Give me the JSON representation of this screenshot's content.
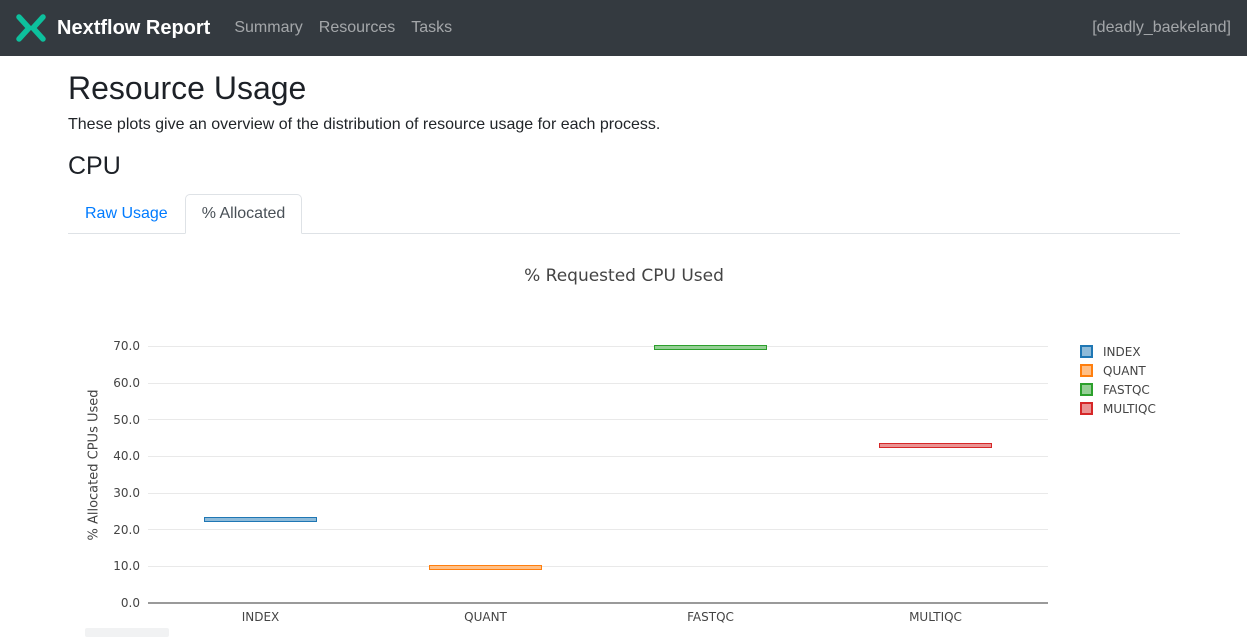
{
  "navbar": {
    "brand": "Nextflow Report",
    "items": [
      {
        "label": "Summary"
      },
      {
        "label": "Resources"
      },
      {
        "label": "Tasks"
      }
    ],
    "run_name": "[deadly_baekeland]",
    "logo_color": "#0dc09d"
  },
  "page": {
    "title": "Resource Usage",
    "subtitle": "These plots give an overview of the distribution of resource usage for each process.",
    "section_heading": "CPU"
  },
  "tabs": [
    {
      "label": "Raw Usage",
      "active": false
    },
    {
      "label": "% Allocated",
      "active": true
    }
  ],
  "chart_data": {
    "type": "box",
    "title": "% Requested CPU Used",
    "xlabel": "",
    "ylabel": "% Allocated CPUs Used",
    "categories": [
      "INDEX",
      "QUANT",
      "FASTQC",
      "MULTIQC"
    ],
    "series": [
      {
        "name": "INDEX",
        "value": 22.9,
        "color": "#1f77b4",
        "fill": "#8fbbd9"
      },
      {
        "name": "QUANT",
        "value": 9.7,
        "color": "#ff7f0e",
        "fill": "#ffbf86"
      },
      {
        "name": "FASTQC",
        "value": 69.8,
        "color": "#2ca02c",
        "fill": "#95cf95"
      },
      {
        "name": "MULTIQC",
        "value": 42.9,
        "color": "#d62728",
        "fill": "#ea9393"
      }
    ],
    "yticks": [
      0,
      10,
      20,
      30,
      40,
      50,
      60,
      70
    ],
    "ytick_labels": [
      "0.0",
      "10.0",
      "20.0",
      "30.0",
      "40.0",
      "50.0",
      "60.0",
      "70.0"
    ],
    "ylim": [
      0,
      75
    ],
    "grid": true,
    "legend_position": "right"
  }
}
